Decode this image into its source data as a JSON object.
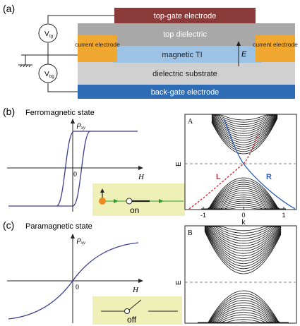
{
  "panel_a": {
    "label": "(a)",
    "layers": {
      "top_gate": "top-gate electrode",
      "top_dielectric": "top dielectric",
      "current_electrode": "current electrode",
      "magnetic_ti": "magnetic TI",
      "field_symbol": "E",
      "dielectric_substrate": "dielectric substrate",
      "back_gate": "back-gate electrode"
    },
    "sources": {
      "top": "V",
      "top_sub": "tg",
      "bottom": "V",
      "bottom_sub": "bg"
    },
    "colors": {
      "top_gate": "#8b3a3a",
      "dielectric": "#a8a8a8",
      "substrate": "#d0d0d0",
      "electrode": "#f0a830",
      "magnetic_ti": "#9cc3e6",
      "back_gate": "#2e6db5"
    }
  },
  "panel_b": {
    "label": "(b)",
    "title": "Ferromagnetic state",
    "ylabel": "ρ",
    "ylabel_sub": "xy",
    "xlabel": "H",
    "origin": "0",
    "switch_label": "on",
    "band_label": "A",
    "band_ylabel": "E",
    "L_label": "L",
    "R_label": "R",
    "xticks": [
      "-1",
      "0",
      "1"
    ],
    "k_label": "k"
  },
  "panel_c": {
    "label": "(c)",
    "title": "Paramagnetic state",
    "ylabel": "ρ",
    "ylabel_sub": "xy",
    "xlabel": "H",
    "origin": "0",
    "switch_label": "off",
    "band_label": "B",
    "band_ylabel": "E"
  },
  "colors": {
    "curve": "#3b3f8f",
    "switch_bg": "#eef0b8",
    "L_curve": "#e0202a",
    "R_curve": "#2a5fb8",
    "arrow_green": "#2aa02a",
    "dot_orange": "#f08a20",
    "dashed": "#888888"
  }
}
